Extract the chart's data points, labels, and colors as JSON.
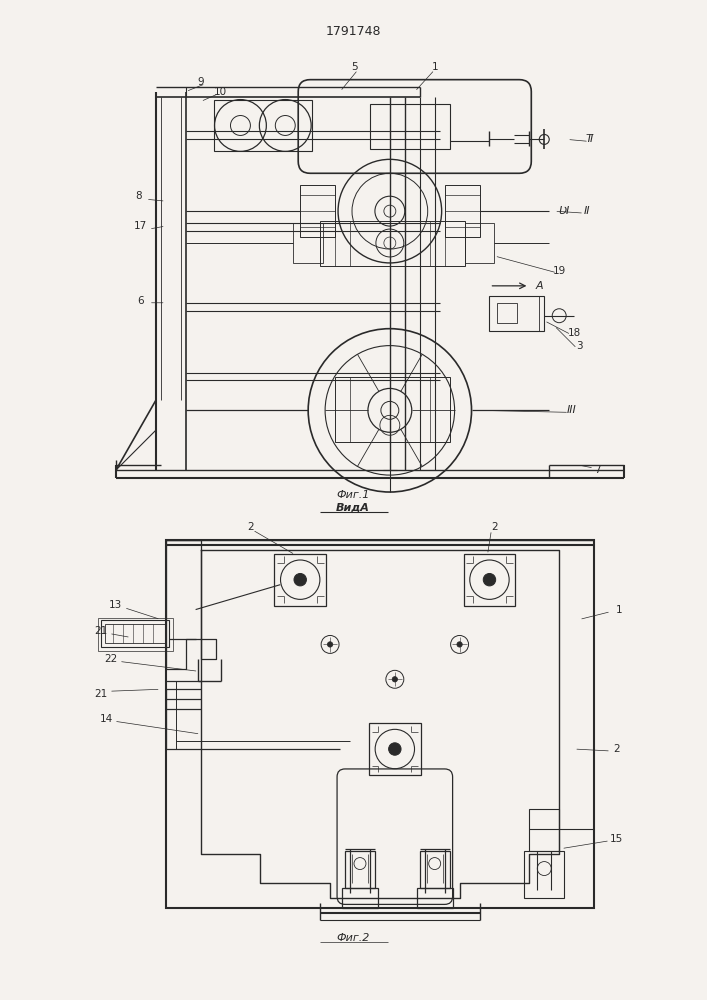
{
  "title": "1791748",
  "bg_color": "#f5f2ee",
  "line_color": "#2a2a2a",
  "fig1_caption": "Фиг.1",
  "fig1_subcaption": "ВидA",
  "fig2_caption": "Фиг.2"
}
